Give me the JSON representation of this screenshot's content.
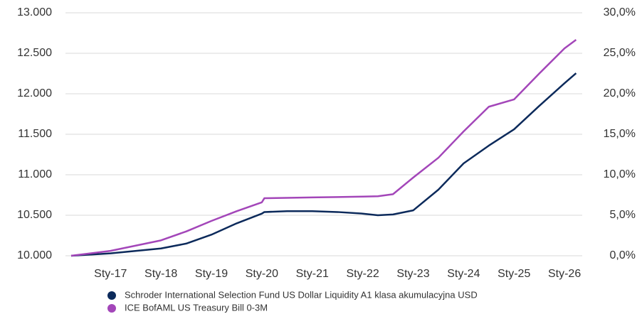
{
  "chart_data": {
    "type": "line",
    "x": [
      2016.22,
      2017,
      2018,
      2018.5,
      2019,
      2019.5,
      2020,
      2020.05,
      2020.5,
      2021,
      2021.5,
      2022,
      2022.3,
      2022.6,
      2023,
      2023.5,
      2024,
      2024.5,
      2025,
      2025.5,
      2026,
      2026.23
    ],
    "series": [
      {
        "name": "Schroder International Selection Fund US Dollar Liquidity A1 klasa akumulacyjna USD",
        "color": "#0c2a5b",
        "values": [
          10000,
          10030,
          10090,
          10150,
          10260,
          10400,
          10520,
          10540,
          10550,
          10550,
          10540,
          10520,
          10500,
          10510,
          10560,
          10816,
          11140,
          11360,
          11561,
          11850,
          12130,
          12254
        ]
      },
      {
        "name": "ICE BofAML US Treasury Bill 0-3M",
        "color": "#a346b9",
        "values": [
          10000,
          10060,
          10190,
          10300,
          10430,
          10550,
          10660,
          10710,
          10715,
          10720,
          10725,
          10730,
          10735,
          10760,
          10965,
          11210,
          11535,
          11840,
          11930,
          12250,
          12560,
          12667
        ]
      }
    ],
    "xlim": [
      2016.22,
      2026.45
    ],
    "xticks": [
      {
        "value": 2017,
        "label": "Sty-17"
      },
      {
        "value": 2018,
        "label": "Sty-18"
      },
      {
        "value": 2019,
        "label": "Sty-19"
      },
      {
        "value": 2020,
        "label": "Sty-20"
      },
      {
        "value": 2021,
        "label": "Sty-21"
      },
      {
        "value": 2022,
        "label": "Sty-22"
      },
      {
        "value": 2023,
        "label": "Sty-23"
      },
      {
        "value": 2024,
        "label": "Sty-24"
      },
      {
        "value": 2025,
        "label": "Sty-25"
      },
      {
        "value": 2026,
        "label": "Sty-26"
      }
    ],
    "ylim": [
      10000,
      13000
    ],
    "yticks": [
      {
        "value": 10000,
        "label": "10.000"
      },
      {
        "value": 10500,
        "label": "10.500"
      },
      {
        "value": 11000,
        "label": "11.000"
      },
      {
        "value": 11500,
        "label": "11.500"
      },
      {
        "value": 12000,
        "label": "12.000"
      },
      {
        "value": 12500,
        "label": "12.500"
      },
      {
        "value": 13000,
        "label": "13.000"
      }
    ],
    "y2lim": [
      0,
      30
    ],
    "y2ticks": [
      {
        "value": 0,
        "label": "0,0%"
      },
      {
        "value": 5,
        "label": "5,0%"
      },
      {
        "value": 10,
        "label": "10,0%"
      },
      {
        "value": 15,
        "label": "15,0%"
      },
      {
        "value": 20,
        "label": "20,0%"
      },
      {
        "value": 25,
        "label": "25,0%"
      },
      {
        "value": 30,
        "label": "30,0%"
      }
    ],
    "grid": true
  }
}
